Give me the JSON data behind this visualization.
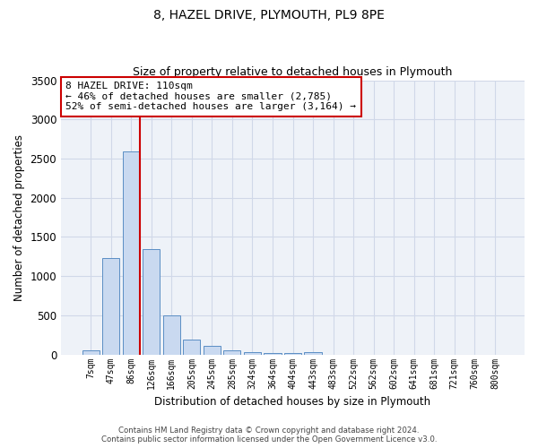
{
  "title": "8, HAZEL DRIVE, PLYMOUTH, PL9 8PE",
  "subtitle": "Size of property relative to detached houses in Plymouth",
  "xlabel": "Distribution of detached houses by size in Plymouth",
  "ylabel": "Number of detached properties",
  "footer_line1": "Contains HM Land Registry data © Crown copyright and database right 2024.",
  "footer_line2": "Contains public sector information licensed under the Open Government Licence v3.0.",
  "bar_labels": [
    "7sqm",
    "47sqm",
    "86sqm",
    "126sqm",
    "166sqm",
    "205sqm",
    "245sqm",
    "285sqm",
    "324sqm",
    "364sqm",
    "404sqm",
    "443sqm",
    "483sqm",
    "522sqm",
    "562sqm",
    "602sqm",
    "641sqm",
    "681sqm",
    "721sqm",
    "760sqm",
    "800sqm"
  ],
  "bar_values": [
    50,
    1230,
    2590,
    1340,
    500,
    190,
    110,
    55,
    35,
    20,
    15,
    30,
    0,
    0,
    0,
    0,
    0,
    0,
    0,
    0,
    0
  ],
  "bar_color": "#c9d9f0",
  "bar_edge_color": "#5b8ec4",
  "grid_color": "#d0d8e8",
  "bg_color": "#eef2f8",
  "marker_label": "8 HAZEL DRIVE: 110sqm",
  "annotation_line1": "← 46% of detached houses are smaller (2,785)",
  "annotation_line2": "52% of semi-detached houses are larger (3,164) →",
  "annotation_box_color": "#ffffff",
  "annotation_border_color": "#cc0000",
  "marker_line_color": "#cc0000",
  "ylim": [
    0,
    3500
  ],
  "yticks": [
    0,
    500,
    1000,
    1500,
    2000,
    2500,
    3000,
    3500
  ]
}
